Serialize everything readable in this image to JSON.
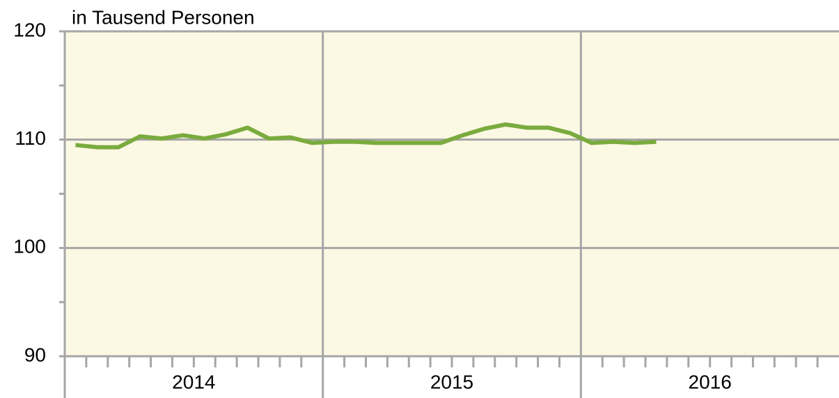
{
  "chart_data": {
    "type": "line",
    "y_axis_label": "in Tausend Personen",
    "year_groups": [
      "2014",
      "2015",
      "2016"
    ],
    "series": [
      {
        "name": null,
        "color": "#7aab3e",
        "values": [
          109.5,
          109.3,
          109.3,
          110.3,
          110.1,
          110.4,
          110.1,
          110.5,
          111.1,
          110.1,
          110.2,
          109.7,
          109.8,
          109.8,
          109.7,
          109.7,
          109.7,
          109.7,
          110.4,
          111.0,
          111.4,
          111.1,
          111.1,
          110.6,
          109.7,
          109.8,
          109.7,
          109.8,
          null,
          null,
          null,
          null,
          null,
          null,
          null,
          null
        ]
      }
    ],
    "ylim": [
      90,
      120
    ],
    "yticks": [
      90,
      100,
      110,
      120
    ],
    "yminor_ticks": [
      95,
      105,
      115
    ],
    "grid": true,
    "background": "#fbf8e3",
    "grid_color": "#a6a6a6"
  }
}
